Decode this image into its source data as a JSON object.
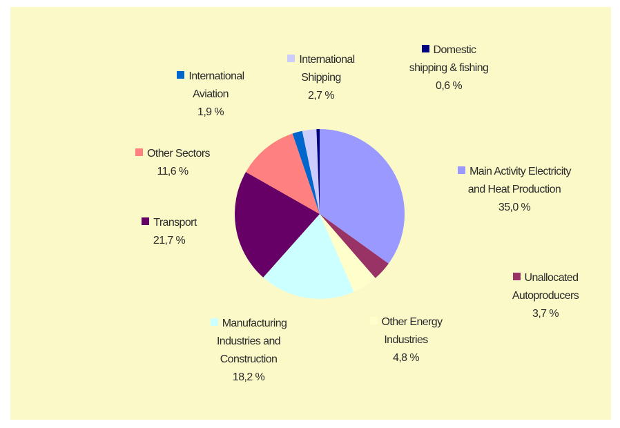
{
  "chart_data": {
    "type": "pie",
    "categories": [
      "Main Activity Electricity and Heat Production",
      "Unallocated Autoproducers",
      "Other Energy Industries",
      "Manufacturing Industries and Construction",
      "Transport",
      "Other Sectors",
      "International Aviation",
      "International Shipping",
      "Domestic shipping & fishing"
    ],
    "values": [
      35.0,
      3.7,
      4.8,
      18.2,
      21.7,
      11.6,
      1.9,
      2.7,
      0.6
    ],
    "value_labels": [
      "35,0 %",
      "3,7 %",
      "4,8 %",
      "18,2 %",
      "21,7 %",
      "11,6 %",
      "1,9 %",
      "2,7 %",
      "0,6 %"
    ],
    "colors": [
      "#9999ff",
      "#993366",
      "#ffffcc",
      "#ccffff",
      "#660066",
      "#ff8080",
      "#0066cc",
      "#ccccff",
      "#000080"
    ]
  }
}
